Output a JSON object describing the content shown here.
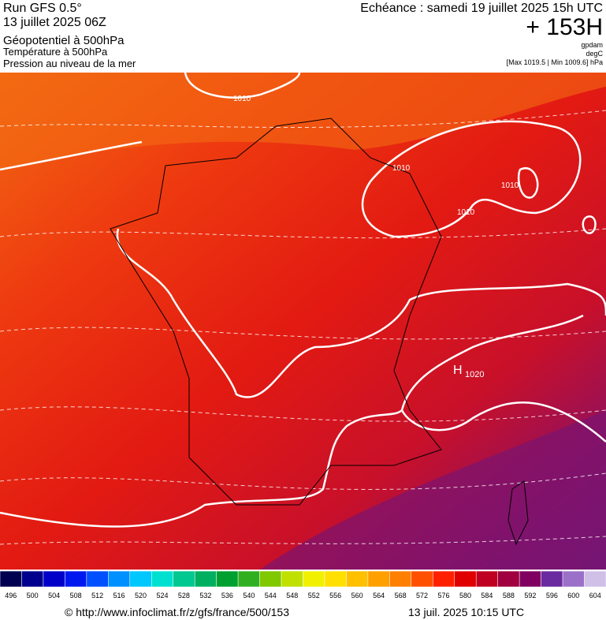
{
  "header": {
    "run": "Run GFS 0.5°",
    "date": "13 juillet 2025 06Z",
    "param1": "Géopotentiel à 500hPa",
    "param2": "Température à 500hPa",
    "param3": "Pression au niveau de la mer",
    "echeance": "Echéance : samedi 19 juillet 2025 15h UTC",
    "lead": "+ 153H",
    "unit1": "gpdam",
    "unit2": "degC",
    "range": "[Max 1019.5 | Min 1009.6] hPa"
  },
  "map": {
    "labels": [
      "1010",
      "1010",
      "1010",
      "1010",
      "H",
      "1020"
    ]
  },
  "colorbar": {
    "ticks": [
      496,
      500,
      504,
      508,
      512,
      516,
      520,
      524,
      528,
      532,
      536,
      540,
      544,
      548,
      552,
      556,
      560,
      564,
      568,
      572,
      576,
      580,
      584,
      588,
      592,
      596,
      600,
      604
    ],
    "colors": [
      "#000050",
      "#00008c",
      "#0000c8",
      "#0018f0",
      "#0050ff",
      "#0090ff",
      "#00c8ff",
      "#00e0d0",
      "#00c890",
      "#00b060",
      "#00a030",
      "#30b020",
      "#80c800",
      "#c0e000",
      "#f0f000",
      "#ffe000",
      "#ffc000",
      "#ffa000",
      "#ff8000",
      "#ff5000",
      "#ff2000",
      "#e00000",
      "#c00020",
      "#a00040",
      "#800060",
      "#6a2aa0",
      "#9a70c8",
      "#d0c0e8"
    ]
  },
  "footer": {
    "url": "© http://www.infoclimat.fr/z/gfs/france/500/153",
    "stamp": "13 juil. 2025 10:15 UTC"
  }
}
